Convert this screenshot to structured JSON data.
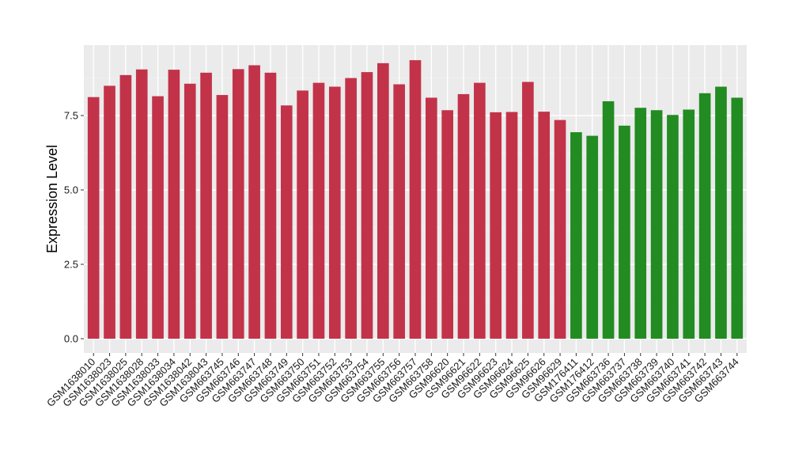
{
  "chart_data": {
    "type": "bar",
    "title": "",
    "xlabel": "",
    "ylabel": "Expression Level",
    "ylim": [
      0,
      9.6
    ],
    "y_ticks": [
      "0.0",
      "2.5",
      "5.0",
      "7.5"
    ],
    "grid": true,
    "legend": "none",
    "colors": {
      "panel": "#ebebeb",
      "grid_major": "#ffffff",
      "grid_minor": "#f5f5f5",
      "group_1": "#c2334a",
      "group_2": "#228b22"
    },
    "categories": [
      "GSM1638010",
      "GSM1638023",
      "GSM1638025",
      "GSM1638028",
      "GSM1638033",
      "GSM1638034",
      "GSM1638042",
      "GSM1638043",
      "GSM663745",
      "GSM663746",
      "GSM663747",
      "GSM663748",
      "GSM663749",
      "GSM663750",
      "GSM663751",
      "GSM663752",
      "GSM663753",
      "GSM663754",
      "GSM663755",
      "GSM663756",
      "GSM663757",
      "GSM663758",
      "GSM96620",
      "GSM96621",
      "GSM96622",
      "GSM96623",
      "GSM96624",
      "GSM96625",
      "GSM96626",
      "GSM96629",
      "GSM176411",
      "GSM176412",
      "GSM663736",
      "GSM663737",
      "GSM663738",
      "GSM663739",
      "GSM663740",
      "GSM663741",
      "GSM663742",
      "GSM663743",
      "GSM663744"
    ],
    "values": [
      8.12,
      8.5,
      8.86,
      9.05,
      8.15,
      9.04,
      8.57,
      8.94,
      8.19,
      9.06,
      9.19,
      8.94,
      7.84,
      8.34,
      8.6,
      8.47,
      8.76,
      8.96,
      9.26,
      8.55,
      9.36,
      8.1,
      7.68,
      8.22,
      8.6,
      7.61,
      7.62,
      8.63,
      7.63,
      7.35,
      6.94,
      6.82,
      7.98,
      7.16,
      7.76,
      7.68,
      7.52,
      7.7,
      8.25,
      8.47,
      8.1
    ],
    "groups": [
      1,
      1,
      1,
      1,
      1,
      1,
      1,
      1,
      1,
      1,
      1,
      1,
      1,
      1,
      1,
      1,
      1,
      1,
      1,
      1,
      1,
      1,
      1,
      1,
      1,
      1,
      1,
      1,
      1,
      1,
      2,
      2,
      2,
      2,
      2,
      2,
      2,
      2,
      2,
      2,
      2
    ]
  }
}
